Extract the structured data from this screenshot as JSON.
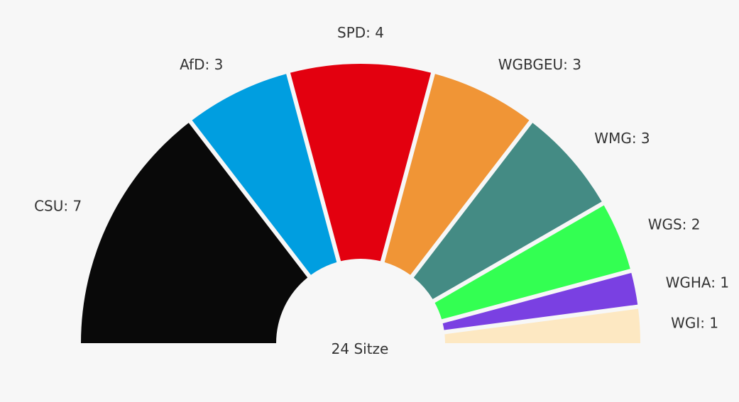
{
  "chart_data": {
    "type": "pie",
    "subtype": "half-donut (seat distribution)",
    "total_label": "24 Sitze",
    "total": 24,
    "series": [
      {
        "name": "CSU",
        "value": 7,
        "label": "CSU: 7",
        "color": "#090909"
      },
      {
        "name": "AfD",
        "value": 3,
        "label": "AfD: 3",
        "color": "#009ee0"
      },
      {
        "name": "SPD",
        "value": 4,
        "label": "SPD: 4",
        "color": "#e3000f"
      },
      {
        "name": "WGBGEU",
        "value": 3,
        "label": "WGBGEU: 3",
        "color": "#f09536"
      },
      {
        "name": "WMG",
        "value": 3,
        "label": "WMG: 3",
        "color": "#448b84"
      },
      {
        "name": "WGS",
        "value": 2,
        "label": "WGS: 2",
        "color": "#33ff52"
      },
      {
        "name": "WGHA",
        "value": 1,
        "label": "WGHA: 1",
        "color": "#7a40e2"
      },
      {
        "name": "WGI",
        "value": 1,
        "label": "WGI: 1",
        "color": "#fde8c2"
      }
    ]
  }
}
